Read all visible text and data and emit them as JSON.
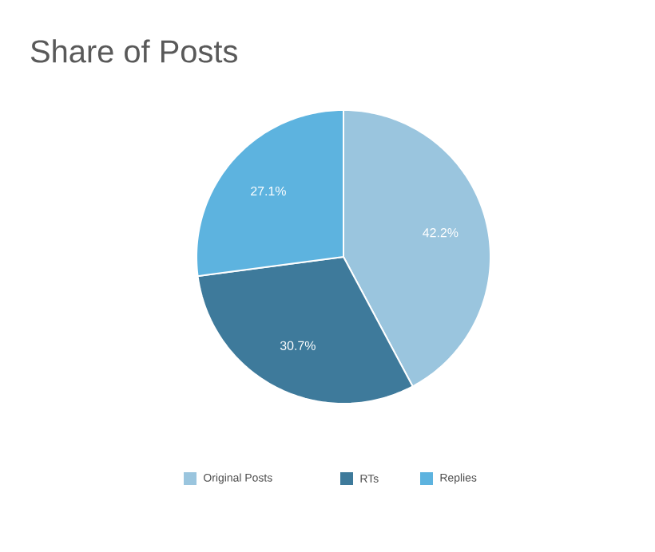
{
  "chart_data": {
    "type": "pie",
    "title": "Share of Posts",
    "categories": [
      "Original Posts",
      "RTs",
      "Replies"
    ],
    "values": [
      42.2,
      30.7,
      27.1
    ],
    "colors": [
      "#9ac5de",
      "#3e7a9b",
      "#5db3df"
    ],
    "value_labels": [
      "42.2%",
      "30.7%",
      "27.1%"
    ],
    "legend": "bottom"
  }
}
